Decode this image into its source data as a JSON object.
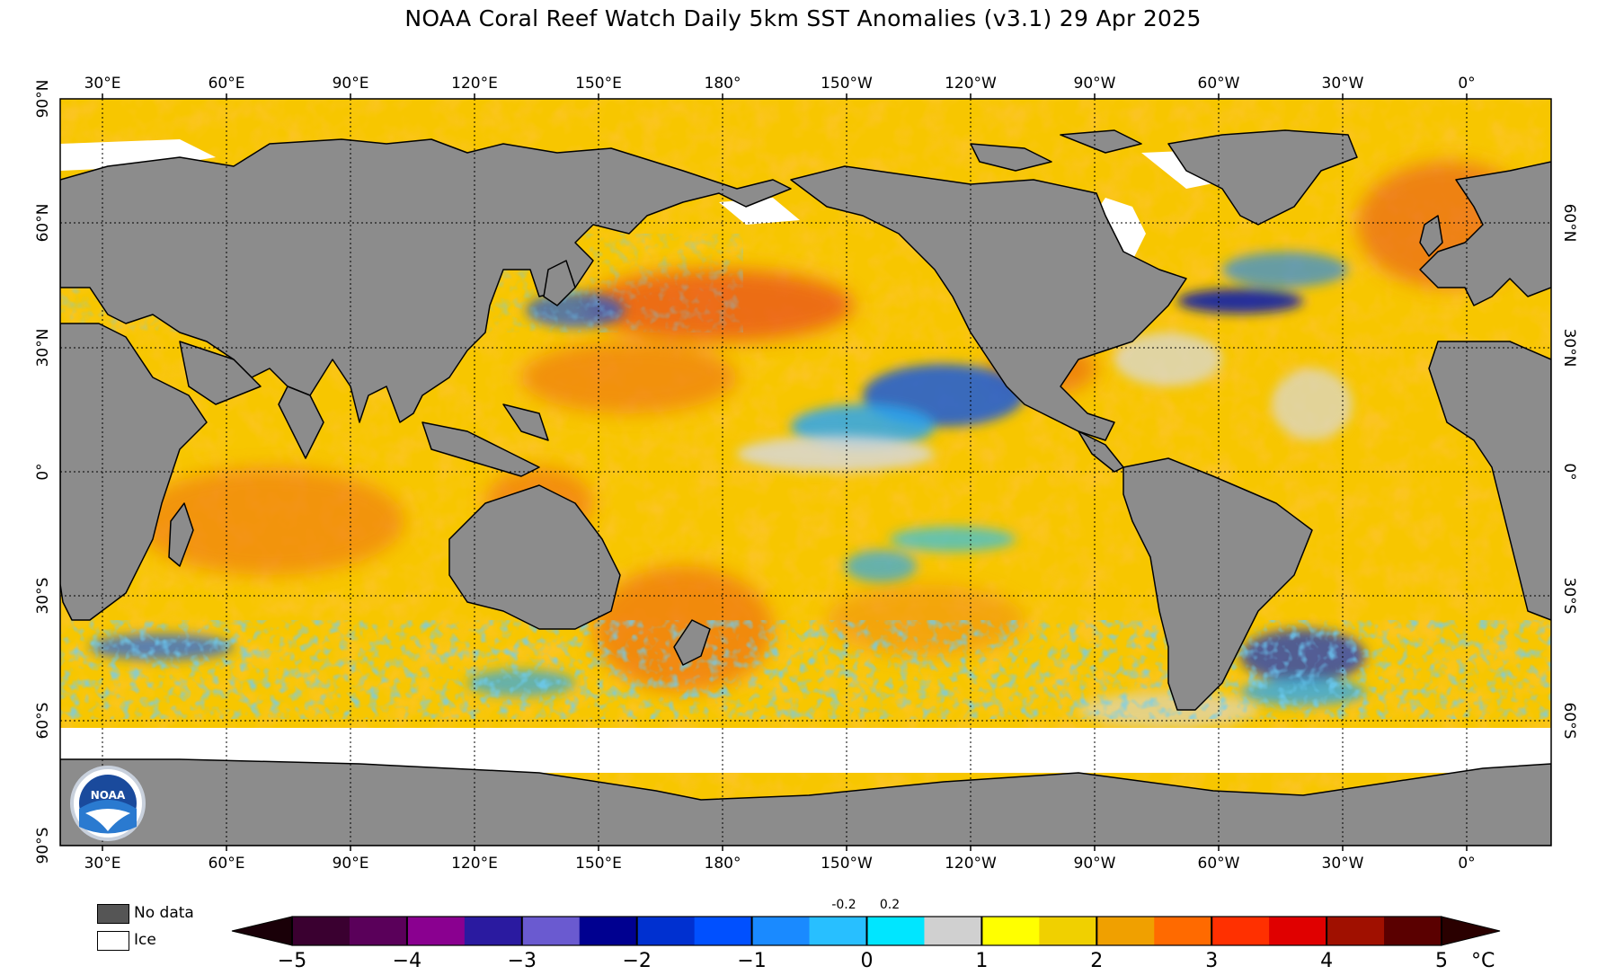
{
  "title": "NOAA Coral Reef Watch Daily 5km SST Anomalies  (v3.1)   29 Apr 2025",
  "map": {
    "top_lon_labels": [
      "30°E",
      "60°E",
      "90°E",
      "120°E",
      "150°E",
      "180°",
      "150°W",
      "120°W",
      "90°W",
      "60°W",
      "30°W",
      "0°"
    ],
    "bottom_lon_labels": [
      "30°E",
      "60°E",
      "90°E",
      "120°E",
      "150°E",
      "180°",
      "150°W",
      "120°W",
      "90°W",
      "60°W",
      "30°W",
      "0°"
    ],
    "left_lat_labels": [
      "90°N",
      "60°N",
      "30°N",
      "0°",
      "30°S",
      "60°S",
      "90°S"
    ],
    "right_lat_labels": [
      "60°N",
      "30°N",
      "0°",
      "30°S",
      "60°S"
    ],
    "logo_text": "NOAA",
    "colors": {
      "land": "#8c8c8c",
      "ocean_base": "#f7c600",
      "warm": "#f08010",
      "hot": "#e03a0a",
      "cool": "#29a8f0",
      "cold": "#1040c8",
      "neutral": "#d8d8d8",
      "ice": "#ffffff"
    }
  },
  "legend": {
    "no_data_label": "No data",
    "ice_label": "Ice",
    "tick_labels": [
      "−5",
      "−4",
      "−3",
      "−2",
      "−1",
      "0",
      "1",
      "2",
      "3",
      "4",
      "5"
    ],
    "small_labels": [
      "-0.2",
      "0.2"
    ],
    "unit": "°C",
    "colors": [
      "#3a0030",
      "#5a005a",
      "#8a0090",
      "#2a1aa0",
      "#6a5ad0",
      "#000090",
      "#0030d0",
      "#0050ff",
      "#1a8aff",
      "#28bfff",
      "#00e6ff",
      "#d0d0d0",
      "#ffff00",
      "#f0d000",
      "#f0a000",
      "#ff6a00",
      "#ff3000",
      "#e00000",
      "#a01000",
      "#5a0000"
    ]
  }
}
